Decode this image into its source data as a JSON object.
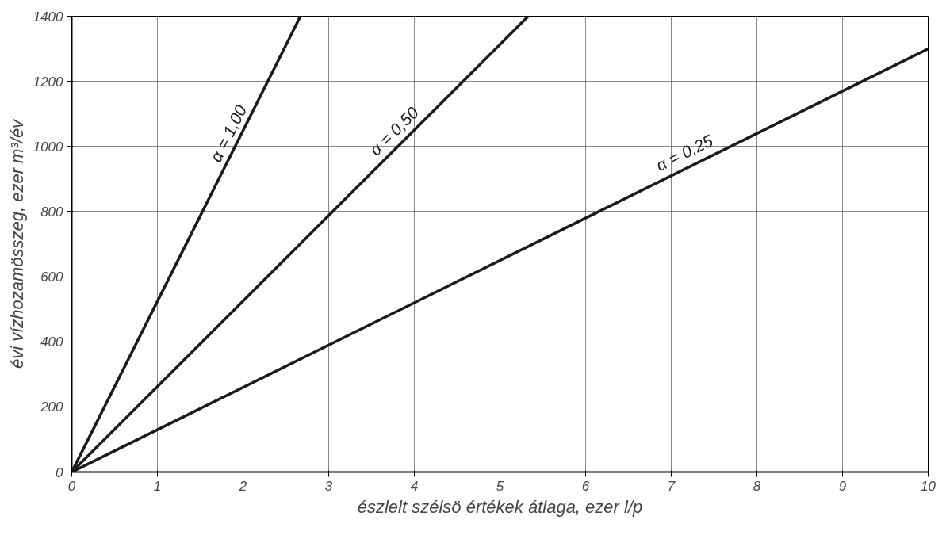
{
  "chart_data": {
    "type": "line",
    "xlabel": "észlelt szélsö értékek átlaga, ezer l/p",
    "ylabel": "évi vízhozamösszeg, ezer m³/év",
    "series": [
      {
        "name": "α = 1,00",
        "color": "#1a1a1a",
        "x": [
          0,
          2.67
        ],
        "values": [
          0,
          1400
        ]
      },
      {
        "name": "α = 0,50",
        "color": "#1a1a1a",
        "x": [
          0,
          5.33
        ],
        "values": [
          0,
          1400
        ]
      },
      {
        "name": "α = 0,25",
        "color": "#1a1a1a",
        "x": [
          0,
          10
        ],
        "values": [
          0,
          1300
        ]
      }
    ],
    "xlim": [
      0,
      10
    ],
    "xticks": [
      0,
      1,
      2,
      3,
      4,
      5,
      6,
      7,
      8,
      9,
      10
    ],
    "ylim": [
      0,
      1400
    ],
    "yticks": [
      0,
      200,
      400,
      600,
      800,
      1000,
      1200,
      1400
    ],
    "grid": true,
    "marker": "none",
    "line_style": "solid"
  }
}
